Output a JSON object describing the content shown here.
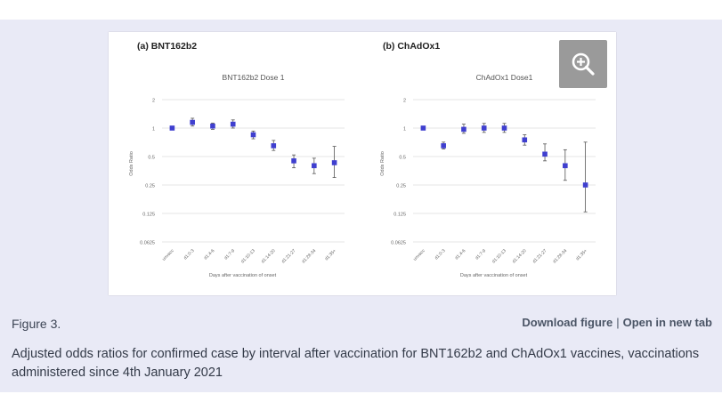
{
  "figure": {
    "label": "Figure 3.",
    "download_label": "Download figure",
    "separator": "|",
    "open_label": "Open in new tab",
    "caption": "Adjusted odds ratios for confirmed case by interval after vaccination for BNT162b2 and ChAdOx1 vaccines, vaccinations administered since 4th January 2021",
    "zoom_icon": "zoom-in-icon"
  },
  "colors": {
    "panel_bg": "#e9eaf6",
    "marker": "#3f3fcf",
    "zoom_bg": "#9a9a9a"
  },
  "chart_data": [
    {
      "type": "scatter",
      "panel_label": "(a) BNT162b2",
      "title": "BNT162b2 Dose 1",
      "xlabel": "Days after vaccination of onset",
      "ylabel": "Odds Ratio",
      "yscale": "log",
      "yticks": [
        "2",
        "1",
        "0.5",
        "0.25",
        "0.125",
        "0.0625"
      ],
      "ytick_values": [
        2,
        1,
        0.5,
        0.25,
        0.125,
        0.0625
      ],
      "categories": [
        "unvacc",
        "d1:0-3",
        "d1:4-6",
        "d1:7-9",
        "d1:10-13",
        "d1:14-20",
        "d1:21-27",
        "d1:28-34",
        "d1:35+"
      ],
      "values": [
        1.0,
        1.15,
        1.05,
        1.1,
        0.85,
        0.65,
        0.45,
        0.4,
        0.43
      ],
      "ci_low": [
        1.0,
        1.05,
        0.97,
        1.0,
        0.77,
        0.58,
        0.38,
        0.33,
        0.3
      ],
      "ci_high": [
        1.0,
        1.27,
        1.13,
        1.22,
        0.93,
        0.74,
        0.52,
        0.48,
        0.64
      ]
    },
    {
      "type": "scatter",
      "panel_label": "(b) ChAdOx1",
      "title": "ChAdOx1 Dose1",
      "xlabel": "Days after vaccination of onset",
      "ylabel": "Odds Ratio",
      "yscale": "log",
      "yticks": [
        "2",
        "1",
        "0.5",
        "0.25",
        "0.125",
        "0.0625"
      ],
      "ytick_values": [
        2,
        1,
        0.5,
        0.25,
        0.125,
        0.0625
      ],
      "categories": [
        "unvacc",
        "d1:0-3",
        "d1:4-6",
        "d1:7-9",
        "d1:10-13",
        "d1:14-20",
        "d1:21-27",
        "d1:28-34",
        "d1:35+"
      ],
      "values": [
        1.0,
        0.65,
        0.97,
        1.0,
        1.0,
        0.75,
        0.53,
        0.4,
        0.25
      ],
      "ci_low": [
        1.0,
        0.6,
        0.88,
        0.9,
        0.9,
        0.66,
        0.45,
        0.28,
        0.13
      ],
      "ci_high": [
        1.0,
        0.71,
        1.1,
        1.12,
        1.12,
        0.85,
        0.68,
        0.59,
        0.71
      ]
    }
  ]
}
